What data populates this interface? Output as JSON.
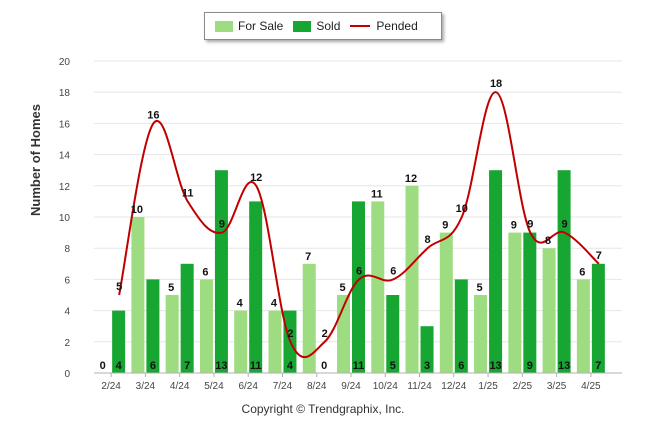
{
  "chart_data": {
    "type": "bar",
    "categories": [
      "2/24",
      "3/24",
      "4/24",
      "5/24",
      "6/24",
      "7/24",
      "8/24",
      "9/24",
      "10/24",
      "11/24",
      "12/24",
      "1/25",
      "2/25",
      "3/25",
      "4/25"
    ],
    "series": [
      {
        "name": "For Sale",
        "type": "bar",
        "color": "#9edc82",
        "values": [
          0,
          10,
          5,
          6,
          4,
          4,
          7,
          5,
          11,
          12,
          9,
          5,
          9,
          8,
          6
        ]
      },
      {
        "name": "Sold",
        "type": "bar",
        "color": "#17a631",
        "values": [
          4,
          6,
          7,
          13,
          11,
          4,
          0,
          11,
          5,
          3,
          6,
          13,
          9,
          13,
          7
        ]
      },
      {
        "name": "Pended",
        "type": "line",
        "color": "#c00000",
        "values": [
          5,
          16,
          11,
          9,
          12,
          2,
          2,
          6,
          6,
          8,
          10,
          18,
          9,
          9,
          7
        ]
      }
    ],
    "ylabel": "Number of Homes",
    "ylim": [
      0,
      20
    ],
    "yticks": [
      0,
      2,
      4,
      6,
      8,
      10,
      12,
      14,
      16,
      18,
      20
    ],
    "grid": true,
    "legend": "top-center"
  },
  "footer": "Copyright © Trendgraphix, Inc."
}
